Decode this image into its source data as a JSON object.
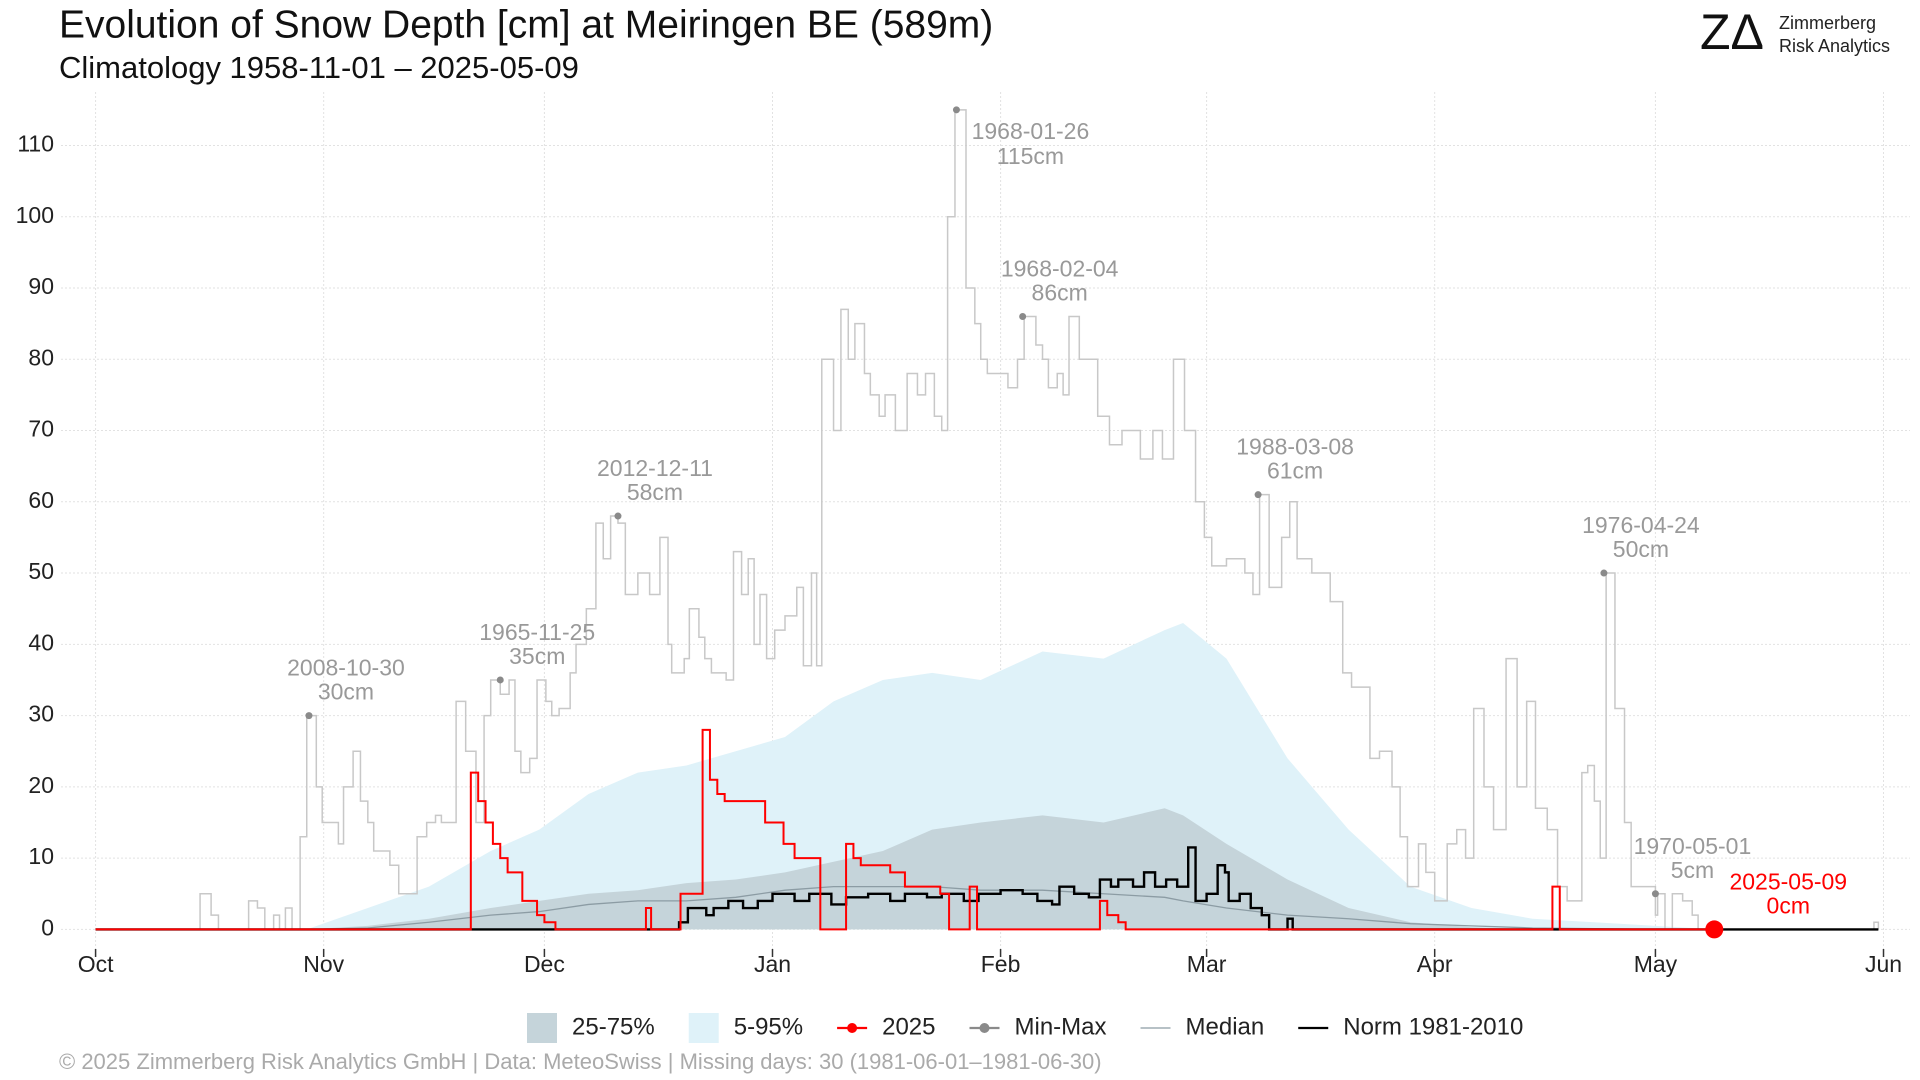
{
  "chart_data": {
    "type": "line",
    "title": "Evolution of Snow Depth [cm] at Meiringen  BE (589m)",
    "subtitle": "Climatology 1958-11-01 – 2025-05-09",
    "logo": {
      "mark": "ZΔ",
      "name": "Zimmerberg",
      "tagline": "Risk Analytics"
    },
    "footer": "©  2025 Zimmerberg Risk Analytics GmbH | Data: MeteoSwiss | Missing days: 30 (1981-06-01–1981-06-30)",
    "xlim": [
      -4.7,
      246.6
    ],
    "xticks": [
      {
        "value": 0,
        "label": "Oct"
      },
      {
        "value": 31,
        "label": "Nov"
      },
      {
        "value": 61,
        "label": "Dec"
      },
      {
        "value": 92,
        "label": "Jan"
      },
      {
        "value": 123,
        "label": "Feb"
      },
      {
        "value": 151,
        "label": "Mar"
      },
      {
        "value": 182,
        "label": "Apr"
      },
      {
        "value": 212,
        "label": "May"
      },
      {
        "value": 243,
        "label": "Jun"
      }
    ],
    "ylim": [
      -2.75,
      117.5
    ],
    "yticks": [
      0,
      10,
      20,
      30,
      40,
      50,
      60,
      70,
      80,
      90,
      100,
      110
    ],
    "grid": true,
    "series": [
      {
        "name": "25-75%",
        "type": "area",
        "color": "#c5d4da",
        "x": [
          28.7,
          37,
          45.3,
          53.7,
          60.3,
          67,
          73.7,
          80.3,
          87,
          93.7,
          100.3,
          107,
          113.7,
          120.3,
          128.7,
          137,
          145.3,
          147.8,
          153.7,
          162,
          170.3,
          178.7,
          187,
          195.3,
          203.7,
          212,
          220.3
        ],
        "values": [
          0,
          0.5,
          1.5,
          3,
          4,
          5,
          5.5,
          6.5,
          7,
          8,
          9.5,
          11,
          14,
          15,
          16,
          15,
          17,
          16,
          12,
          7,
          3,
          1,
          0.3,
          0,
          0,
          0,
          0
        ]
      },
      {
        "name": "5-95%",
        "type": "area",
        "color": "#dff2f9",
        "x": [
          28.7,
          37,
          45.3,
          53.7,
          60.3,
          67,
          73.7,
          80.3,
          87,
          93.7,
          100.3,
          107,
          113.7,
          120.3,
          128.7,
          137,
          145.3,
          147.8,
          153.7,
          162,
          170.3,
          178.7,
          187,
          195.3,
          203.7,
          212,
          220.3
        ],
        "values": [
          0,
          3,
          6,
          11,
          14,
          19,
          22,
          23,
          25,
          27,
          32,
          35,
          36,
          35,
          39,
          38,
          42,
          43,
          38,
          24,
          14,
          6,
          3,
          1.5,
          1,
          0.5,
          0
        ]
      },
      {
        "name": "2025",
        "type": "step",
        "color": "#ff0000",
        "marker": true,
        "x": [
          0,
          51,
          52,
          53,
          54,
          55,
          56,
          58,
          60,
          61,
          62.5,
          74.8,
          75.5,
          79.5,
          82.5,
          83.5,
          84.5,
          85.5,
          91,
          93.5,
          95,
          98.5,
          102,
          103,
          104,
          108,
          110,
          114.8,
          116,
          118.8,
          119.8,
          136.5,
          137.5,
          139,
          140,
          198,
          199,
          220
        ],
        "values": [
          0,
          22,
          18,
          15,
          12,
          10,
          8,
          4,
          2,
          1,
          0,
          3,
          0,
          5,
          28,
          21,
          19,
          18,
          15,
          12,
          10,
          0,
          12,
          10,
          9,
          8,
          6,
          5,
          0,
          6,
          0,
          4,
          2,
          1,
          0,
          6,
          0,
          0
        ]
      },
      {
        "name": "Min-Max",
        "type": "step",
        "color": "#c8c8c8",
        "marker": true,
        "x": [
          0,
          14.2,
          15.7,
          16.7,
          20.8,
          22,
          23,
          24.2,
          25,
          25.8,
          26.7,
          27.8,
          28.7,
          30,
          30.8,
          33,
          33.7,
          35,
          36,
          37,
          37.8,
          40,
          41.2,
          43.7,
          45,
          46.2,
          47,
          49,
          50.3,
          51.7,
          52.8,
          53.7,
          55,
          56.2,
          57,
          57.8,
          59,
          60,
          61.2,
          62,
          63,
          64.5,
          65.3,
          66.7,
          68,
          69,
          70,
          71,
          72,
          73.7,
          75.3,
          76.7,
          77.8,
          78.3,
          80,
          80.7,
          82,
          82.8,
          83.7,
          85.7,
          86.7,
          87.8,
          88.7,
          89.5,
          90.3,
          91.2,
          92.3,
          93.7,
          95.3,
          96.2,
          97.3,
          98,
          98.7,
          100.3,
          101.3,
          102.3,
          103.2,
          104.5,
          105.3,
          106.5,
          107.3,
          108.7,
          110.3,
          111.7,
          112.8,
          114,
          115,
          115.8,
          116.8,
          118.3,
          119.5,
          120.3,
          121.2,
          124,
          125.3,
          126.2,
          127.8,
          128.7,
          129.5,
          130.7,
          131.5,
          132.3,
          133.7,
          136.2,
          137.8,
          139.5,
          142,
          143.7,
          145,
          146.5,
          148,
          149.5,
          150.7,
          151.7,
          153.7,
          156.2,
          157.3,
          158.2,
          159.5,
          161.2,
          162.3,
          163.3,
          165.3,
          167.8,
          169.5,
          170.7,
          173.2,
          174.5,
          176.2,
          177.3,
          178.3,
          179.8,
          180.8,
          182,
          183.7,
          185,
          186.2,
          187.3,
          188.7,
          190,
          191.7,
          193.2,
          194.5,
          195.7,
          197.3,
          198.7,
          200,
          202,
          202.8,
          203.7,
          204.5,
          205.3,
          206.5,
          207.8,
          208.7,
          212,
          212.3,
          213.3,
          214.3,
          215.7,
          217,
          217.8,
          241.7,
          242.3
        ],
        "values": [
          0,
          5,
          2,
          0,
          4,
          3,
          0,
          2,
          0,
          3,
          0,
          13,
          30,
          20,
          15,
          12,
          20,
          25,
          18,
          15,
          11,
          9,
          5,
          13,
          15,
          16,
          15,
          32,
          25,
          15,
          30,
          35,
          33,
          35,
          25,
          22,
          24,
          35,
          32,
          30,
          31,
          36,
          40,
          45,
          57,
          52,
          58,
          57,
          47,
          50,
          47,
          55,
          40,
          36,
          38,
          45,
          41,
          38,
          36,
          35,
          53,
          47,
          52,
          40,
          47,
          38,
          42,
          44,
          48,
          37,
          50,
          37,
          80,
          70,
          87,
          80,
          85,
          78,
          75,
          72,
          75,
          70,
          78,
          75,
          78,
          72,
          70,
          100,
          115,
          90,
          85,
          80,
          78,
          76,
          80,
          86,
          82,
          80,
          76,
          78,
          75,
          86,
          80,
          72,
          68,
          70,
          66,
          70,
          66,
          80,
          70,
          60,
          55,
          51,
          52,
          50,
          47,
          61,
          48,
          55,
          60,
          52,
          50,
          46,
          36,
          34,
          24,
          25,
          20,
          13,
          6,
          12,
          8,
          4,
          12,
          14,
          10,
          31,
          20,
          14,
          38,
          20,
          32,
          17,
          14,
          6,
          4,
          22,
          23,
          18,
          10,
          50,
          31,
          15,
          6,
          2,
          5,
          0,
          5,
          4,
          2,
          0,
          1,
          0
        ]
      },
      {
        "name": "Median",
        "type": "line",
        "color": "#8c9ca4",
        "x": [
          28.7,
          37,
          45.3,
          53.7,
          60.3,
          67,
          73.7,
          80.3,
          87,
          93.7,
          100.3,
          107,
          113.7,
          120.3,
          128.7,
          137,
          145.3,
          147.8,
          153.7,
          162,
          170.3,
          178.7,
          187,
          195.3,
          203.7,
          212,
          220.3
        ],
        "values": [
          0,
          0.2,
          1,
          2,
          2.5,
          3.5,
          4,
          4,
          4.5,
          5.5,
          6,
          6,
          6,
          5.5,
          5.5,
          5,
          4.5,
          4,
          3,
          2,
          1.5,
          0.8,
          0.5,
          0.2,
          0.1,
          0,
          0
        ]
      },
      {
        "name": "Norm 1981-2010",
        "type": "step",
        "color": "#000000",
        "x": [
          0,
          79.3,
          80.5,
          83,
          84,
          86,
          88,
          90,
          92,
          95,
          97,
          100,
          102,
          105,
          108,
          110,
          113,
          115,
          118,
          120,
          123,
          126,
          128,
          130,
          131,
          133,
          135,
          136.5,
          138,
          139,
          141,
          142.5,
          144,
          145.5,
          147,
          148.5,
          149.5,
          151,
          152.5,
          153.5,
          154,
          155.5,
          157,
          158.5,
          159.5,
          162,
          162.7,
          242.3
        ],
        "values": [
          0,
          1,
          3,
          2,
          3,
          4,
          3,
          4,
          5,
          4,
          5,
          3.5,
          4.5,
          5,
          4,
          5,
          4.5,
          5,
          4,
          5,
          5.5,
          5,
          4,
          3.5,
          6,
          5,
          4.5,
          7,
          6,
          7,
          6,
          8,
          6,
          7,
          6,
          11.5,
          4,
          5,
          9,
          8,
          4,
          5,
          3,
          2,
          0,
          1.5,
          0,
          0
        ]
      }
    ],
    "annotations": [
      {
        "x": 29,
        "y": 30,
        "date": "2008-10-30",
        "label": "30cm"
      },
      {
        "x": 55,
        "y": 35,
        "date": "1965-11-25",
        "label": "35cm"
      },
      {
        "x": 71,
        "y": 58,
        "date": "2012-12-11",
        "label": "58cm"
      },
      {
        "x": 117,
        "y": 115,
        "date": "1968-01-26",
        "label": "115cm"
      },
      {
        "x": 126,
        "y": 86,
        "date": "1968-02-04",
        "label": "86cm"
      },
      {
        "x": 158,
        "y": 61,
        "date": "1988-03-08",
        "label": "61cm"
      },
      {
        "x": 205,
        "y": 50,
        "date": "1976-04-24",
        "label": "50cm"
      },
      {
        "x": 212,
        "y": 5,
        "date": "1970-05-01",
        "label": "5cm"
      },
      {
        "x": 220,
        "y": 0,
        "date": "2025-05-09",
        "label": "0cm",
        "color": "#ff0000"
      }
    ],
    "annotation_color": "#999999"
  }
}
